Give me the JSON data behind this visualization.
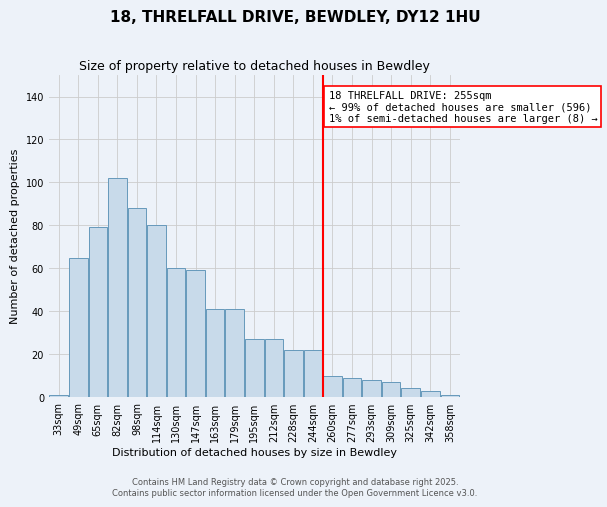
{
  "title": "18, THRELFALL DRIVE, BEWDLEY, DY12 1HU",
  "subtitle": "Size of property relative to detached houses in Bewdley",
  "xlabel": "Distribution of detached houses by size in Bewdley",
  "ylabel": "Number of detached properties",
  "categories": [
    "33sqm",
    "49sqm",
    "65sqm",
    "82sqm",
    "98sqm",
    "114sqm",
    "130sqm",
    "147sqm",
    "163sqm",
    "179sqm",
    "195sqm",
    "212sqm",
    "228sqm",
    "244sqm",
    "260sqm",
    "277sqm",
    "293sqm",
    "309sqm",
    "325sqm",
    "342sqm",
    "358sqm"
  ],
  "bar_heights": [
    1,
    65,
    79,
    102,
    88,
    80,
    60,
    59,
    41,
    41,
    27,
    27,
    22,
    22,
    10,
    9,
    8,
    7,
    4,
    3,
    1
  ],
  "bar_color": "#c8daea",
  "bar_edge_color": "#6699bb",
  "background_color": "#edf2f9",
  "grid_color": "#cccccc",
  "vline_index": 13.5,
  "vline_color": "red",
  "annotation_text": "18 THRELFALL DRIVE: 255sqm\n← 99% of detached houses are smaller (596)\n1% of semi-detached houses are larger (8) →",
  "annotation_box_color": "white",
  "annotation_edge_color": "red",
  "ylim": [
    0,
    150
  ],
  "yticks": [
    0,
    20,
    40,
    60,
    80,
    100,
    120,
    140
  ],
  "footer_text": "Contains HM Land Registry data © Crown copyright and database right 2025.\nContains public sector information licensed under the Open Government Licence v3.0.",
  "title_fontsize": 11,
  "subtitle_fontsize": 9,
  "annotation_fontsize": 7.5,
  "footer_fontsize": 6,
  "ylabel_fontsize": 8,
  "xlabel_fontsize": 8,
  "tick_fontsize": 7
}
